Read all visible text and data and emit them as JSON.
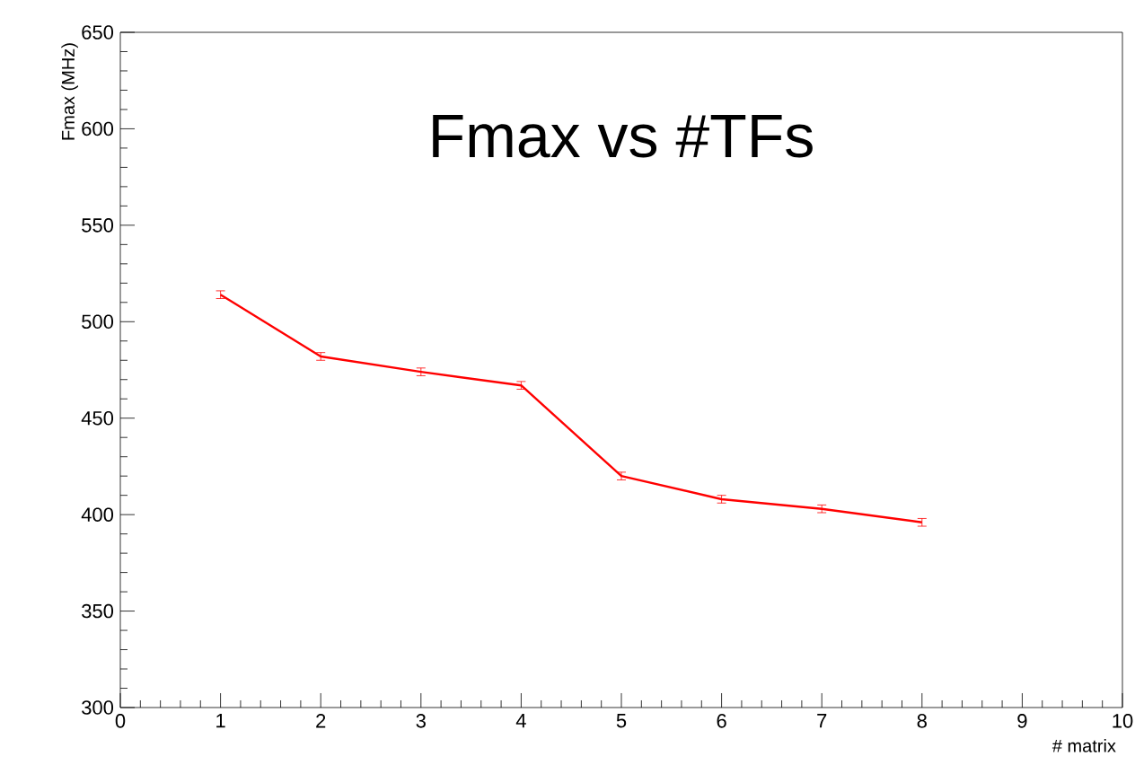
{
  "chart_data": {
    "type": "line",
    "title": "Fmax vs #TFs",
    "xlabel": "# matrix",
    "ylabel": "Fmax (MHz)",
    "x": [
      1,
      2,
      3,
      4,
      5,
      6,
      7,
      8
    ],
    "series": [
      {
        "color": "#ff0000",
        "values": [
          514,
          482,
          474,
          467,
          420,
          408,
          403,
          396
        ],
        "errors": [
          2,
          2,
          2,
          2,
          2,
          2,
          2,
          2
        ]
      }
    ],
    "xlim": [
      0,
      10
    ],
    "ylim": [
      300,
      650
    ],
    "xticks": [
      0,
      1,
      2,
      3,
      4,
      5,
      6,
      7,
      8,
      9,
      10
    ],
    "yticks": [
      300,
      350,
      400,
      450,
      500,
      550,
      600,
      650
    ],
    "marker": "none",
    "line_style": "solid"
  }
}
